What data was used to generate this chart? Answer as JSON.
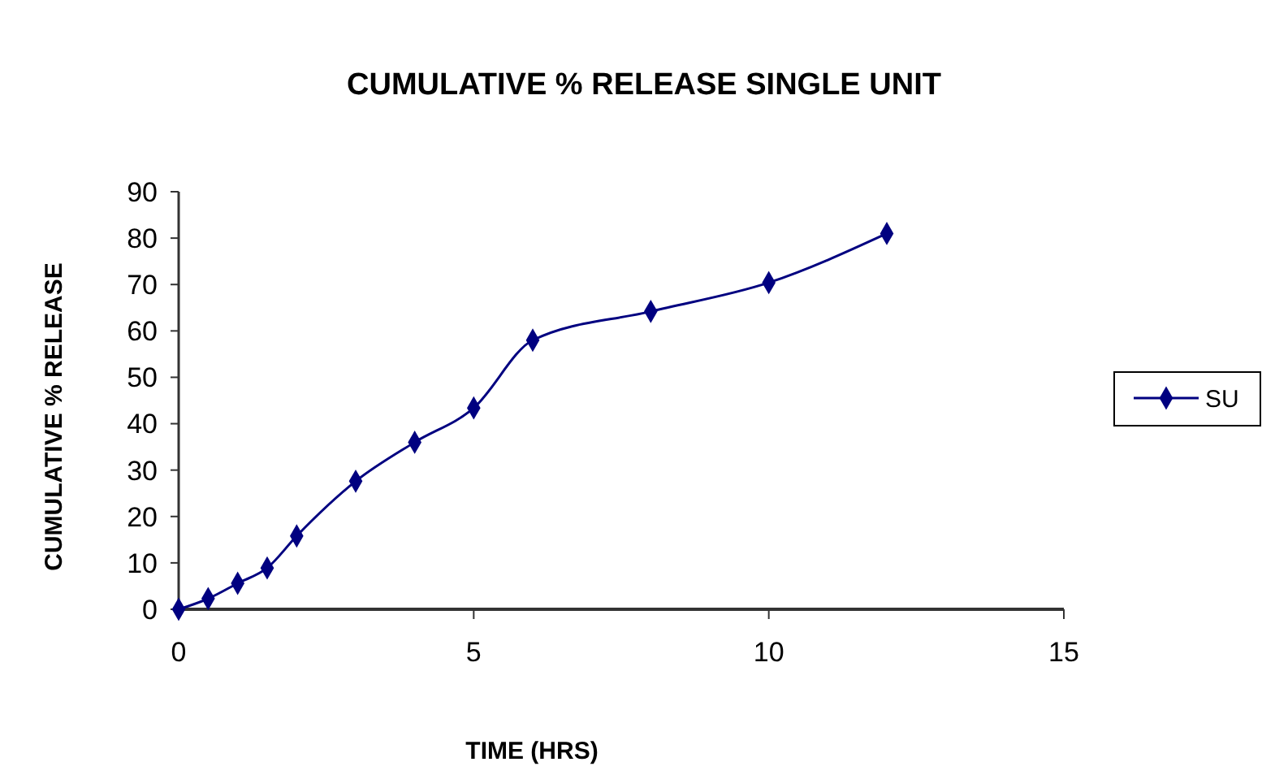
{
  "chart_data": {
    "type": "line",
    "title": "CUMULATIVE % RELEASE  SINGLE UNIT",
    "xlabel": "TIME (HRS)",
    "ylabel": "CUMULATIVE % RELEASE",
    "x": [
      0,
      0.5,
      1,
      1.5,
      2,
      3,
      4,
      5,
      6,
      8,
      10,
      12
    ],
    "series": [
      {
        "name": "SU",
        "color": "#000080",
        "values": [
          0,
          2.3,
          5.6,
          8.9,
          15.8,
          27.6,
          36,
          43.4,
          58,
          64.2,
          70.4,
          81
        ]
      }
    ],
    "xlim": [
      0,
      15
    ],
    "xticks": [
      0,
      5,
      10,
      15
    ],
    "ylim": [
      0,
      90
    ],
    "yticks": [
      0,
      10,
      20,
      30,
      40,
      50,
      60,
      70,
      80,
      90
    ],
    "grid": false,
    "legend": "right",
    "marker": "diamond",
    "line_style": "solid"
  }
}
